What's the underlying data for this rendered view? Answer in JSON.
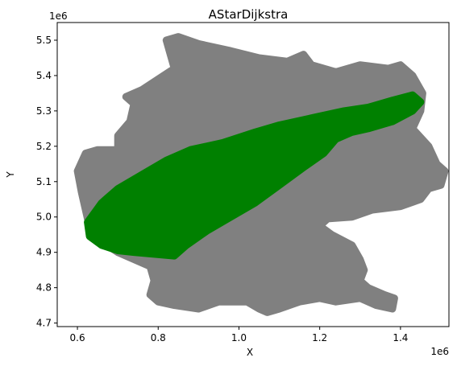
{
  "chart_data": {
    "type": "scatter",
    "title": "AStarDijkstra",
    "xlabel": "X",
    "ylabel": "Y",
    "x_offset_label": "1e6",
    "y_offset_label": "1e6",
    "xlim": [
      550000,
      1520000
    ],
    "ylim": [
      4690000,
      5550000
    ],
    "xticks": [
      {
        "value": 600000,
        "label": "0.6"
      },
      {
        "value": 800000,
        "label": "0.8"
      },
      {
        "value": 1000000,
        "label": "1.0"
      },
      {
        "value": 1200000,
        "label": "1.2"
      },
      {
        "value": 1400000,
        "label": "1.4"
      }
    ],
    "yticks": [
      {
        "value": 4700000,
        "label": "4.7"
      },
      {
        "value": 4800000,
        "label": "4.8"
      },
      {
        "value": 4900000,
        "label": "4.9"
      },
      {
        "value": 5000000,
        "label": "5.0"
      },
      {
        "value": 5100000,
        "label": "5.1"
      },
      {
        "value": 5200000,
        "label": "5.2"
      },
      {
        "value": 5300000,
        "label": "5.3"
      },
      {
        "value": 5400000,
        "label": "5.4"
      },
      {
        "value": 5500000,
        "label": "5.5"
      }
    ],
    "grid": false,
    "series": [
      {
        "color": "#808080",
        "outline": [
          [
            820000,
            5500000
          ],
          [
            850000,
            5510000
          ],
          [
            900000,
            5490000
          ],
          [
            980000,
            5470000
          ],
          [
            1050000,
            5450000
          ],
          [
            1120000,
            5440000
          ],
          [
            1160000,
            5460000
          ],
          [
            1180000,
            5430000
          ],
          [
            1240000,
            5410000
          ],
          [
            1300000,
            5430000
          ],
          [
            1370000,
            5420000
          ],
          [
            1400000,
            5430000
          ],
          [
            1430000,
            5400000
          ],
          [
            1455000,
            5350000
          ],
          [
            1450000,
            5300000
          ],
          [
            1430000,
            5250000
          ],
          [
            1470000,
            5200000
          ],
          [
            1490000,
            5150000
          ],
          [
            1510000,
            5130000
          ],
          [
            1500000,
            5090000
          ],
          [
            1470000,
            5080000
          ],
          [
            1450000,
            5050000
          ],
          [
            1400000,
            5030000
          ],
          [
            1330000,
            5020000
          ],
          [
            1280000,
            5000000
          ],
          [
            1220000,
            4995000
          ],
          [
            1200000,
            4975000
          ],
          [
            1230000,
            4950000
          ],
          [
            1280000,
            4920000
          ],
          [
            1300000,
            4880000
          ],
          [
            1310000,
            4850000
          ],
          [
            1300000,
            4820000
          ],
          [
            1320000,
            4800000
          ],
          [
            1360000,
            4780000
          ],
          [
            1385000,
            4770000
          ],
          [
            1380000,
            4740000
          ],
          [
            1340000,
            4750000
          ],
          [
            1300000,
            4770000
          ],
          [
            1240000,
            4760000
          ],
          [
            1200000,
            4770000
          ],
          [
            1150000,
            4760000
          ],
          [
            1100000,
            4740000
          ],
          [
            1070000,
            4730000
          ],
          [
            1050000,
            4740000
          ],
          [
            1020000,
            4760000
          ],
          [
            950000,
            4760000
          ],
          [
            900000,
            4740000
          ],
          [
            840000,
            4750000
          ],
          [
            800000,
            4760000
          ],
          [
            780000,
            4780000
          ],
          [
            790000,
            4820000
          ],
          [
            780000,
            4860000
          ],
          [
            740000,
            4880000
          ],
          [
            700000,
            4900000
          ],
          [
            660000,
            4930000
          ],
          [
            630000,
            4970000
          ],
          [
            620000,
            5020000
          ],
          [
            610000,
            5070000
          ],
          [
            600000,
            5130000
          ],
          [
            620000,
            5180000
          ],
          [
            650000,
            5190000
          ],
          [
            700000,
            5190000
          ],
          [
            700000,
            5230000
          ],
          [
            730000,
            5270000
          ],
          [
            740000,
            5320000
          ],
          [
            720000,
            5340000
          ],
          [
            760000,
            5360000
          ],
          [
            800000,
            5390000
          ],
          [
            840000,
            5420000
          ],
          [
            830000,
            5460000
          ]
        ]
      },
      {
        "color": "#008000",
        "outline": [
          [
            625000,
            4985000
          ],
          [
            660000,
            5040000
          ],
          [
            700000,
            5080000
          ],
          [
            760000,
            5120000
          ],
          [
            820000,
            5160000
          ],
          [
            880000,
            5190000
          ],
          [
            960000,
            5210000
          ],
          [
            1040000,
            5240000
          ],
          [
            1100000,
            5260000
          ],
          [
            1180000,
            5280000
          ],
          [
            1260000,
            5300000
          ],
          [
            1320000,
            5310000
          ],
          [
            1380000,
            5330000
          ],
          [
            1430000,
            5345000
          ],
          [
            1450000,
            5325000
          ],
          [
            1430000,
            5300000
          ],
          [
            1380000,
            5270000
          ],
          [
            1320000,
            5250000
          ],
          [
            1280000,
            5240000
          ],
          [
            1240000,
            5220000
          ],
          [
            1210000,
            5180000
          ],
          [
            1160000,
            5140000
          ],
          [
            1100000,
            5090000
          ],
          [
            1040000,
            5040000
          ],
          [
            980000,
            5000000
          ],
          [
            920000,
            4960000
          ],
          [
            870000,
            4920000
          ],
          [
            840000,
            4890000
          ],
          [
            790000,
            4895000
          ],
          [
            740000,
            4900000
          ],
          [
            700000,
            4905000
          ],
          [
            660000,
            4920000
          ],
          [
            630000,
            4945000
          ]
        ]
      }
    ]
  }
}
